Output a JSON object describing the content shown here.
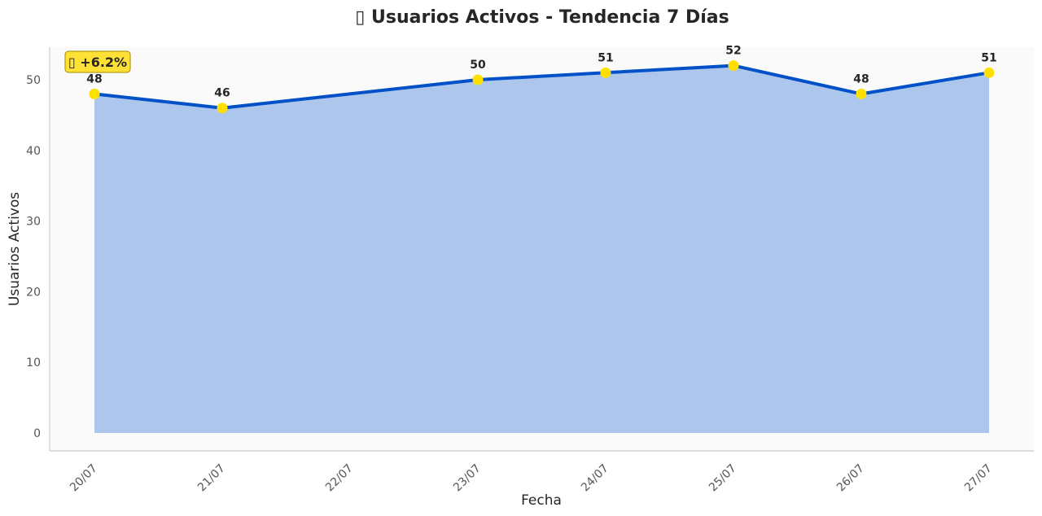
{
  "chart_data": {
    "type": "area",
    "title": "▯ Usuarios Activos - Tendencia 7 Días",
    "xlabel": "Fecha",
    "ylabel": "Usuarios Activos",
    "categories": [
      "20/07",
      "21/07",
      "22/07",
      "23/07",
      "24/07",
      "25/07",
      "26/07",
      "27/07"
    ],
    "series": [
      {
        "points": [
          {
            "x": "20/07",
            "y": 48
          },
          {
            "x": "21/07",
            "y": 46
          },
          {
            "x": "23/07",
            "y": 50
          },
          {
            "x": "24/07",
            "y": 51
          },
          {
            "x": "25/07",
            "y": 52
          },
          {
            "x": "26/07",
            "y": 48
          },
          {
            "x": "27/07",
            "y": 51
          }
        ]
      }
    ],
    "ylim": [
      0,
      55
    ],
    "yticks": [
      0,
      10,
      20,
      30,
      40,
      50
    ],
    "grid": false,
    "annotation": {
      "text": "▯ +6.2%",
      "position": "top-left"
    },
    "colors": {
      "line": "#0050c8",
      "fill": "#adc6ec",
      "marker": "#ffe000",
      "badge_fill": "#ffe135",
      "badge_border": "#a08a00",
      "plot_background": "#fafafa"
    }
  }
}
